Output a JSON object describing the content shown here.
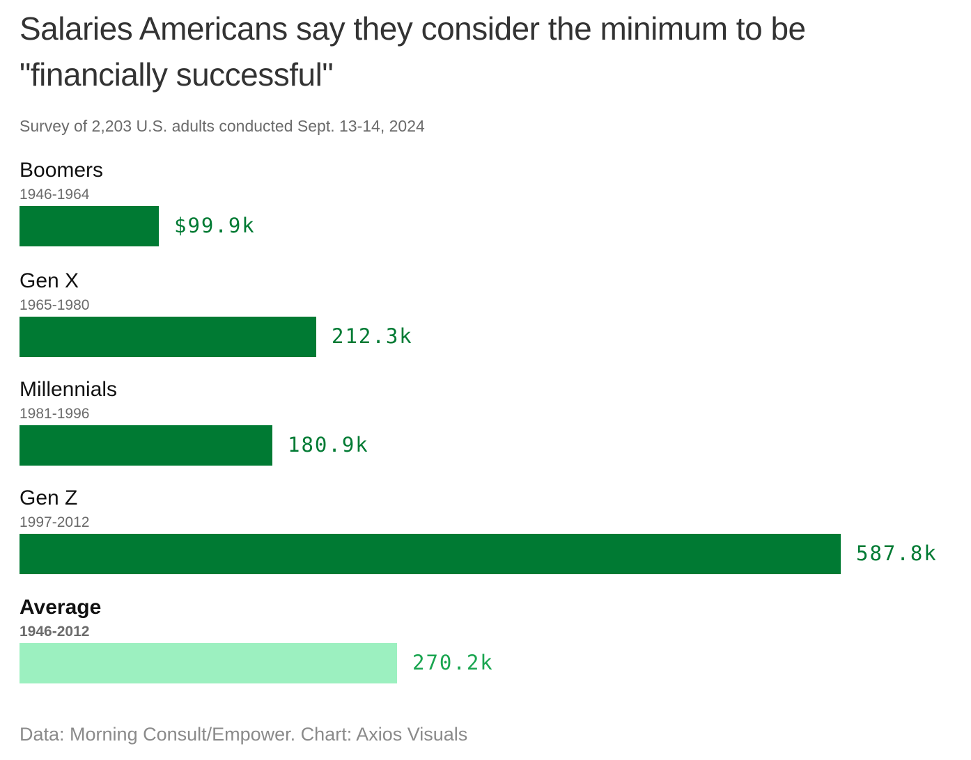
{
  "chart_data": {
    "type": "bar",
    "orientation": "horizontal",
    "title": "Salaries Americans say they consider the minimum to be \"financially successful\"",
    "subtitle": "Survey of 2,203 U.S. adults conducted Sept. 13-14, 2024",
    "categories": [
      "Boomers",
      "Gen X",
      "Millennials",
      "Gen Z",
      "Average"
    ],
    "years": [
      "1946-1964",
      "1965-1980",
      "1981-1996",
      "1997-2012",
      "1946-2012"
    ],
    "values": [
      99.9,
      212.3,
      180.9,
      587.8,
      270.2
    ],
    "value_labels": [
      "$99.9k",
      "212.3k",
      "180.9k",
      "587.8k",
      "270.2k"
    ],
    "unit": "thousands of dollars",
    "colors": {
      "bar": "#007a33",
      "average_bar": "#9cf0c0",
      "label": "#007a33",
      "average_label": "#1aa550"
    },
    "xlim": [
      0,
      587.8
    ],
    "grid": false,
    "legend": "none"
  },
  "footer": "Data: Morning Consult/Empower. Chart: Axios Visuals"
}
